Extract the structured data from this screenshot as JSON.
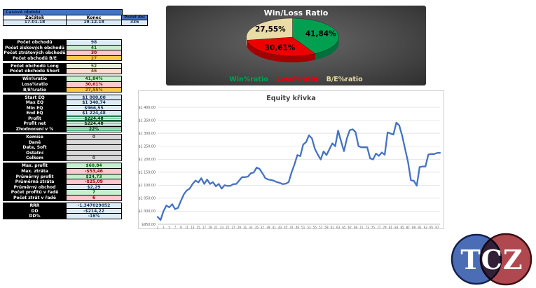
{
  "left_panel": {
    "period": {
      "header": "Časové období",
      "start_label": "Začátek",
      "end_label": "Konec",
      "days_label": "Počet dní",
      "start": "17.01.18",
      "end": "19.12.18",
      "days": "336"
    },
    "rows": [
      {
        "label": "Počet obchodů",
        "value": "98",
        "style": "blue"
      },
      {
        "label": "Počet ziskových obchodů",
        "value": "41",
        "style": "green"
      },
      {
        "label": "Počet ztrátových obchodů",
        "value": "30",
        "style": "pink"
      },
      {
        "label": "Počet obchodů B/E",
        "value": "27",
        "style": "orange"
      },
      {
        "style": "spacer"
      },
      {
        "label": "Počet obchodů Long",
        "value": "52",
        "style": "palegreen"
      },
      {
        "label": "Počet obchodů Short",
        "value": "46",
        "style": "palepink"
      },
      {
        "style": "spacer"
      },
      {
        "label": "Win%ratio",
        "value": "41,84%",
        "style": "green"
      },
      {
        "label": "Loss%ratio",
        "value": "30,61%",
        "style": "pink"
      },
      {
        "label": "B/E%ratio",
        "value": "27,55%",
        "style": "orange"
      },
      {
        "style": "spacer"
      },
      {
        "label": "Start EQ",
        "value": "$1 000,00",
        "style": "blue"
      },
      {
        "label": "Max EQ",
        "value": "$1 340,74",
        "style": "blue"
      },
      {
        "label": "Min EQ",
        "value": "$966,55",
        "style": "blue"
      },
      {
        "label": "End EQ",
        "value": "$1 224,48",
        "style": "blue"
      },
      {
        "label": "Profit",
        "value": "$224,48",
        "style": "stripe"
      },
      {
        "label": "Profit net",
        "value": "$224,48",
        "style": "stripe"
      },
      {
        "label": "Zhodnocení v %",
        "value": "22%",
        "style": "stripe"
      },
      {
        "style": "spacer"
      },
      {
        "label": "Komise",
        "value": "0",
        "style": "gray"
      },
      {
        "label": "Daně",
        "value": "",
        "style": "gray"
      },
      {
        "label": "Data, Soft",
        "value": "",
        "style": "gray"
      },
      {
        "label": "Ostatní",
        "value": "",
        "style": "gray"
      },
      {
        "label": "Celkem",
        "value": "0",
        "style": "gray"
      },
      {
        "style": "spacer"
      },
      {
        "label": "Max. profit",
        "value": "$60,84",
        "style": "green"
      },
      {
        "label": "Max. ztráta",
        "value": "-$53,46",
        "style": "pink"
      },
      {
        "label": "Průměrný profit",
        "value": "$24,73",
        "style": "green"
      },
      {
        "label": "Průměrná ztráta",
        "value": "-$25,09",
        "style": "pink"
      },
      {
        "label": "Průměrný obchod",
        "value": "$2,29",
        "style": "blue"
      },
      {
        "label": "Počet profitů v řadě",
        "value": "7",
        "style": "green"
      },
      {
        "label": "Počet ztrát v řadě",
        "value": "6",
        "style": "pink"
      },
      {
        "style": "spacer"
      },
      {
        "label": "RRR",
        "value": "-1,347029052",
        "style": "blue"
      },
      {
        "label": "DD",
        "value": "-$214,22",
        "style": "blue"
      },
      {
        "label": "DD%",
        "value": "-16%",
        "style": "blue"
      }
    ]
  },
  "chart_data": [
    {
      "type": "pie",
      "title": "Win/Loss Ratio",
      "labels": [
        "Win%ratio",
        "Loss%ratio",
        "B/E%ratio"
      ],
      "values": [
        41.84,
        30.61,
        27.55
      ],
      "data_labels": [
        "41,84%",
        "30,61%",
        "27,55%"
      ],
      "colors": [
        "#00A050",
        "#EE0000",
        "#EADCA6"
      ],
      "dark_colors": [
        "#00713A",
        "#A30000",
        "#C9B878"
      ],
      "legend_position": "bottom",
      "style": "3d-pie, dark gradient background"
    },
    {
      "type": "line",
      "title": "Equity křivka",
      "ylim": [
        950,
        1400
      ],
      "ytick_step": 50,
      "ytick_labels": [
        "$1 400,00",
        "$1 350,00",
        "$1 300,00",
        "$1 250,00",
        "$1 200,00",
        "$1 150,00",
        "$1 100,00",
        "$1 050,00",
        "$1 000,00",
        "$950,00"
      ],
      "xtick_labels": [
        1,
        3,
        5,
        7,
        9,
        11,
        13,
        15,
        17,
        19,
        21,
        23,
        25,
        27,
        29,
        31,
        33,
        35,
        37,
        39,
        41,
        43,
        45,
        47,
        49,
        51,
        53,
        55,
        57,
        59,
        61,
        63,
        65,
        67,
        69,
        71,
        73,
        75,
        77,
        79,
        81,
        83,
        85,
        87,
        89,
        91,
        93,
        95,
        97
      ],
      "line_color": "#4472C4",
      "grid": true,
      "values": [
        978,
        966.55,
        1000,
        1022,
        1015,
        1027,
        1008,
        1013,
        1040,
        1065,
        1080,
        1087,
        1105,
        1118,
        1111,
        1127,
        1105,
        1122,
        1105,
        1112,
        1096,
        1105,
        1087,
        1100,
        1097,
        1098,
        1104,
        1105,
        1118,
        1131,
        1131,
        1133,
        1146,
        1149,
        1168,
        1163,
        1146,
        1127,
        1122,
        1120,
        1117,
        1112,
        1109,
        1104,
        1106,
        1112,
        1149,
        1180,
        1216,
        1212,
        1256,
        1266,
        1292,
        1280,
        1240,
        1218,
        1199,
        1230,
        1216,
        1238,
        1261,
        1250,
        1310,
        1270,
        1231,
        1280,
        1312,
        1315,
        1304,
        1250,
        1246,
        1246,
        1246,
        1203,
        1199,
        1222,
        1213,
        1226,
        1217,
        1303,
        1299,
        1295,
        1340.74,
        1330,
        1290,
        1240,
        1190,
        1119,
        1117,
        1098,
        1170,
        1172,
        1172,
        1218,
        1220,
        1220,
        1224,
        1224.48
      ]
    }
  ],
  "logo": {
    "text": "TCZ",
    "left_color": "#4A6DB5",
    "right_color": "#B0484F"
  }
}
